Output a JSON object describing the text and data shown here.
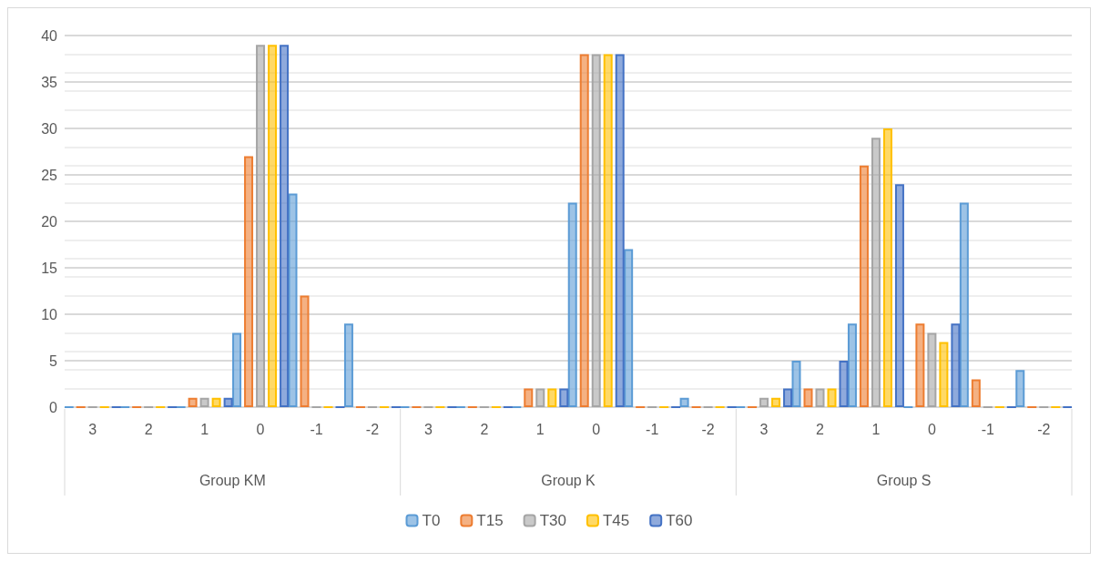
{
  "chart_data": {
    "type": "bar",
    "categories": [
      "3",
      "2",
      "1",
      "0",
      "-1",
      "-2",
      "3",
      "2",
      "1",
      "0",
      "-1",
      "-2",
      "3",
      "2",
      "1",
      "0",
      "-1",
      "-2"
    ],
    "annotations": [
      "Group KM",
      "Group K",
      "Group S"
    ],
    "series": [
      {
        "name": "T0",
        "color": "#5b9bd5",
        "values": [
          0,
          0,
          0,
          8,
          23,
          9,
          0,
          0,
          0,
          22,
          17,
          1,
          0,
          5,
          9,
          0,
          22,
          4
        ]
      },
      {
        "name": "T15",
        "color": "#ed7d31",
        "values": [
          0,
          0,
          1,
          27,
          12,
          0,
          0,
          0,
          2,
          38,
          0,
          0,
          0,
          2,
          26,
          9,
          3,
          0
        ]
      },
      {
        "name": "T30",
        "color": "#a5a5a5",
        "values": [
          0,
          0,
          1,
          39,
          0,
          0,
          0,
          0,
          2,
          38,
          0,
          0,
          1,
          2,
          29,
          8,
          0,
          0
        ]
      },
      {
        "name": "T45",
        "color": "#ffc000",
        "values": [
          0,
          0,
          1,
          39,
          0,
          0,
          0,
          0,
          2,
          38,
          0,
          0,
          1,
          2,
          30,
          7,
          0,
          0
        ]
      },
      {
        "name": "T60",
        "color": "#4472c4",
        "values": [
          0,
          0,
          1,
          39,
          0,
          0,
          0,
          0,
          2,
          38,
          0,
          0,
          2,
          5,
          24,
          9,
          0,
          0
        ]
      }
    ],
    "ylim": [
      0,
      40
    ],
    "yticks": [
      0,
      5,
      10,
      15,
      20,
      25,
      30,
      35,
      40
    ],
    "grid": "y",
    "legend": "bottom"
  }
}
